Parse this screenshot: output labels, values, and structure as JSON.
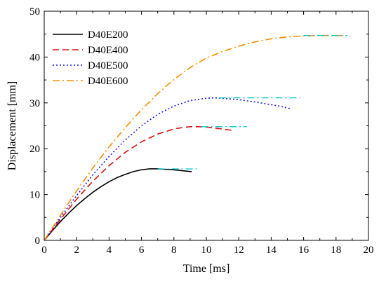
{
  "chart_data": {
    "type": "line",
    "xlabel": "Time [ms]",
    "ylabel": "Displacement [mm]",
    "xlim": [
      0,
      20
    ],
    "ylim": [
      0,
      50
    ],
    "xticks": [
      "0",
      "2",
      "4",
      "6",
      "8",
      "10",
      "12",
      "14",
      "16",
      "18",
      "20"
    ],
    "yticks": [
      "0",
      "10",
      "20",
      "30",
      "40",
      "50"
    ],
    "grid": false,
    "legend_position": "top-left",
    "reference_line_color": "#00c8c8",
    "series": [
      {
        "name": "D40E200",
        "color": "#000000",
        "style": "solid",
        "x": [
          0,
          0.5,
          1,
          1.5,
          2,
          2.5,
          3,
          3.5,
          4,
          4.5,
          5,
          5.5,
          6,
          6.5,
          7,
          7.5,
          8,
          8.5,
          9.1
        ],
        "y": [
          0,
          2.1,
          4.1,
          5.9,
          7.6,
          9.1,
          10.5,
          11.7,
          12.8,
          13.7,
          14.4,
          15.0,
          15.4,
          15.6,
          15.6,
          15.5,
          15.4,
          15.2,
          15.0
        ],
        "reference": {
          "x": [
            7.0,
            9.5
          ],
          "y": 15.6
        }
      },
      {
        "name": "D40E400",
        "color": "#e01010",
        "style": "dashed",
        "x": [
          0,
          1,
          2,
          3,
          4,
          5,
          6,
          7,
          8,
          8.5,
          9,
          9.5,
          10,
          10.5,
          11,
          11.6
        ],
        "y": [
          0,
          4.6,
          9.0,
          12.9,
          16.3,
          19.2,
          21.5,
          23.2,
          24.3,
          24.6,
          24.8,
          24.8,
          24.7,
          24.5,
          24.3,
          24.0
        ],
        "reference": {
          "x": [
            9.7,
            12.5
          ],
          "y": 24.8
        }
      },
      {
        "name": "D40E500",
        "color": "#1a1aee",
        "style": "dotted",
        "x": [
          0,
          1,
          2,
          3,
          4,
          5,
          6,
          7,
          8,
          9,
          10,
          10.5,
          11,
          12,
          13,
          14,
          14.5,
          15.2
        ],
        "y": [
          0,
          5.0,
          9.8,
          14.3,
          18.3,
          21.9,
          25.0,
          27.5,
          29.3,
          30.5,
          31.0,
          31.1,
          31.0,
          30.7,
          30.2,
          29.6,
          29.3,
          28.7
        ],
        "reference": {
          "x": [
            10.8,
            15.8
          ],
          "y": 31.1
        }
      },
      {
        "name": "D40E600",
        "color": "#ff8c00",
        "style": "dashdot",
        "x": [
          0,
          1,
          2,
          3,
          4,
          5,
          6,
          7,
          8,
          9,
          10,
          11,
          12,
          13,
          14,
          15,
          16,
          17,
          18,
          18.7
        ],
        "y": [
          0,
          5.5,
          10.8,
          15.8,
          20.4,
          24.6,
          28.5,
          32.0,
          35.1,
          37.7,
          39.8,
          41.2,
          42.4,
          43.3,
          44.0,
          44.4,
          44.6,
          44.7,
          44.7,
          44.7
        ],
        "reference": {
          "x": [
            16.0,
            18.7
          ],
          "y": 44.7
        }
      }
    ]
  }
}
